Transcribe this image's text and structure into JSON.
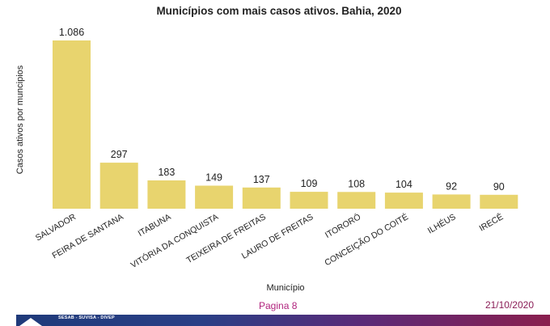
{
  "chart_data": {
    "type": "bar",
    "title": "Municípios com mais casos ativos. Bahia, 2020",
    "xlabel": "Município",
    "ylabel": "Casos ativos por muncipios",
    "categories": [
      "SALVADOR",
      "FEIRA DE SANTANA",
      "ITABUNA",
      "VITÓRIA DA CONQUISTA",
      "TEIXEIRA DE FREITAS",
      "LAURO DE FREITAS",
      "ITORORÓ",
      "CONCEIÇÃO DO COITÉ",
      "ILHÉUS",
      "IRECÊ"
    ],
    "values": [
      1086,
      297,
      183,
      149,
      137,
      109,
      108,
      104,
      92,
      90
    ],
    "value_labels": [
      "1.086",
      "297",
      "183",
      "149",
      "137",
      "109",
      "108",
      "104",
      "92",
      "90"
    ],
    "ylim": [
      0,
      1086
    ],
    "grid": false,
    "bar_color": "#e8d46e"
  },
  "footer": {
    "page": "Pagina 8",
    "date": "21/10/2020",
    "band_text": "SESAB - SUVISA - DIVEP"
  }
}
